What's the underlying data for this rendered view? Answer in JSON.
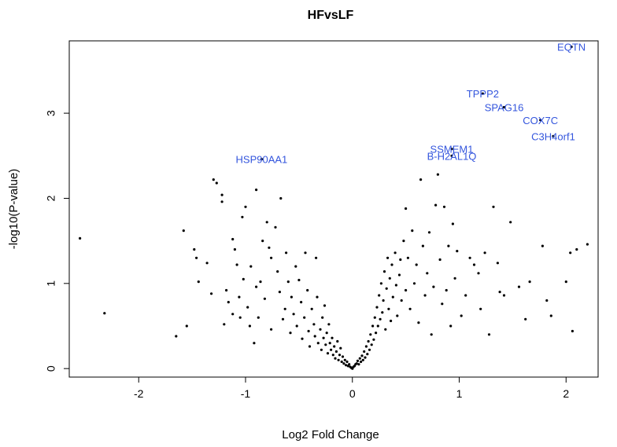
{
  "chart_data": {
    "type": "scatter",
    "title": "HFvsLF",
    "xlabel": "Log2 Fold Change",
    "ylabel": "-log10(P-value)",
    "xlim": [
      -2.65,
      2.3
    ],
    "ylim": [
      -0.1,
      3.85
    ],
    "xticks": [
      -2,
      -1,
      0,
      1,
      2
    ],
    "yticks": [
      0,
      1,
      2,
      3
    ],
    "grid": false,
    "point_color": "#000000",
    "label_color": "#3355dd",
    "labeled_points": [
      {
        "label": "EQTN",
        "x": 2.05,
        "y": 3.78
      },
      {
        "label": "TPPP2",
        "x": 1.22,
        "y": 3.23
      },
      {
        "label": "SPAG16",
        "x": 1.42,
        "y": 3.07
      },
      {
        "label": "COX7C",
        "x": 1.76,
        "y": 2.92
      },
      {
        "label": "C3H4orf1",
        "x": 1.88,
        "y": 2.73
      },
      {
        "label": "HSP90AA1",
        "x": -0.85,
        "y": 2.46
      },
      {
        "label": "SSMEM1",
        "x": 0.93,
        "y": 2.58
      },
      {
        "label": "B-H2AL1Q",
        "x": 0.93,
        "y": 2.5
      }
    ],
    "points": [
      [
        -2.55,
        1.53
      ],
      [
        -2.32,
        0.65
      ],
      [
        -1.65,
        0.38
      ],
      [
        -1.55,
        0.5
      ],
      [
        -1.58,
        1.62
      ],
      [
        -1.48,
        1.4
      ],
      [
        -1.46,
        1.3
      ],
      [
        -1.44,
        1.02
      ],
      [
        -1.36,
        1.24
      ],
      [
        -1.32,
        0.88
      ],
      [
        -1.3,
        2.22
      ],
      [
        -1.27,
        2.18
      ],
      [
        -1.22,
        2.04
      ],
      [
        -1.22,
        1.96
      ],
      [
        -1.2,
        0.52
      ],
      [
        -1.18,
        0.92
      ],
      [
        -1.16,
        0.78
      ],
      [
        -1.12,
        0.64
      ],
      [
        -1.12,
        1.52
      ],
      [
        -1.1,
        1.4
      ],
      [
        -1.08,
        1.22
      ],
      [
        -1.06,
        0.84
      ],
      [
        -1.05,
        0.6
      ],
      [
        -1.03,
        1.78
      ],
      [
        -1.02,
        1.05
      ],
      [
        -1.0,
        1.9
      ],
      [
        -0.98,
        0.72
      ],
      [
        -0.96,
        0.5
      ],
      [
        -0.95,
        1.2
      ],
      [
        -0.92,
        0.3
      ],
      [
        -0.9,
        2.1
      ],
      [
        -0.9,
        0.96
      ],
      [
        -0.88,
        0.6
      ],
      [
        -0.86,
        1.02
      ],
      [
        -0.84,
        1.5
      ],
      [
        -0.82,
        0.82
      ],
      [
        -0.8,
        1.72
      ],
      [
        -0.78,
        1.42
      ],
      [
        -0.76,
        1.3
      ],
      [
        -0.76,
        0.46
      ],
      [
        -0.72,
        1.66
      ],
      [
        -0.7,
        1.14
      ],
      [
        -0.68,
        0.9
      ],
      [
        -0.67,
        2.0
      ],
      [
        -0.65,
        0.58
      ],
      [
        -0.63,
        0.7
      ],
      [
        -0.62,
        1.36
      ],
      [
        -0.6,
        1.02
      ],
      [
        -0.58,
        0.42
      ],
      [
        -0.57,
        0.84
      ],
      [
        -0.55,
        0.64
      ],
      [
        -0.53,
        1.2
      ],
      [
        -0.52,
        0.5
      ],
      [
        -0.5,
        1.04
      ],
      [
        -0.48,
        0.78
      ],
      [
        -0.47,
        0.35
      ],
      [
        -0.45,
        0.6
      ],
      [
        -0.44,
        1.36
      ],
      [
        -0.42,
        0.92
      ],
      [
        -0.41,
        0.44
      ],
      [
        -0.4,
        0.26
      ],
      [
        -0.38,
        0.7
      ],
      [
        -0.36,
        0.52
      ],
      [
        -0.35,
        0.38
      ],
      [
        -0.34,
        1.3
      ],
      [
        -0.33,
        0.84
      ],
      [
        -0.32,
        0.3
      ],
      [
        -0.3,
        0.46
      ],
      [
        -0.29,
        0.22
      ],
      [
        -0.28,
        0.6
      ],
      [
        -0.27,
        0.36
      ],
      [
        -0.26,
        0.74
      ],
      [
        -0.25,
        0.28
      ],
      [
        -0.24,
        0.42
      ],
      [
        -0.23,
        0.18
      ],
      [
        -0.22,
        0.52
      ],
      [
        -0.21,
        0.3
      ],
      [
        -0.2,
        0.22
      ],
      [
        -0.19,
        0.36
      ],
      [
        -0.18,
        0.16
      ],
      [
        -0.17,
        0.26
      ],
      [
        -0.16,
        0.12
      ],
      [
        -0.15,
        0.2
      ],
      [
        -0.14,
        0.32
      ],
      [
        -0.13,
        0.1
      ],
      [
        -0.12,
        0.16
      ],
      [
        -0.11,
        0.24
      ],
      [
        -0.1,
        0.08
      ],
      [
        -0.09,
        0.14
      ],
      [
        -0.08,
        0.06
      ],
      [
        -0.07,
        0.1
      ],
      [
        -0.06,
        0.04
      ],
      [
        -0.05,
        0.08
      ],
      [
        -0.04,
        0.03
      ],
      [
        -0.03,
        0.05
      ],
      [
        -0.02,
        0.02
      ],
      [
        -0.01,
        0.01
      ],
      [
        0.0,
        0.0
      ],
      [
        0.01,
        0.02
      ],
      [
        0.02,
        0.03
      ],
      [
        0.03,
        0.05
      ],
      [
        0.04,
        0.06
      ],
      [
        0.05,
        0.09
      ],
      [
        0.06,
        0.05
      ],
      [
        0.07,
        0.12
      ],
      [
        0.08,
        0.08
      ],
      [
        0.09,
        0.15
      ],
      [
        0.1,
        0.1
      ],
      [
        0.11,
        0.2
      ],
      [
        0.12,
        0.13
      ],
      [
        0.13,
        0.26
      ],
      [
        0.14,
        0.17
      ],
      [
        0.15,
        0.32
      ],
      [
        0.16,
        0.22
      ],
      [
        0.17,
        0.4
      ],
      [
        0.18,
        0.28
      ],
      [
        0.19,
        0.5
      ],
      [
        0.2,
        0.34
      ],
      [
        0.21,
        0.6
      ],
      [
        0.22,
        0.42
      ],
      [
        0.23,
        0.72
      ],
      [
        0.24,
        0.5
      ],
      [
        0.25,
        0.86
      ],
      [
        0.26,
        0.58
      ],
      [
        0.27,
        1.0
      ],
      [
        0.28,
        0.66
      ],
      [
        0.29,
        0.8
      ],
      [
        0.3,
        1.14
      ],
      [
        0.31,
        0.46
      ],
      [
        0.32,
        0.94
      ],
      [
        0.33,
        1.3
      ],
      [
        0.34,
        0.7
      ],
      [
        0.35,
        1.06
      ],
      [
        0.36,
        0.56
      ],
      [
        0.37,
        1.22
      ],
      [
        0.38,
        0.84
      ],
      [
        0.4,
        1.36
      ],
      [
        0.41,
        0.98
      ],
      [
        0.42,
        0.62
      ],
      [
        0.44,
        1.1
      ],
      [
        0.45,
        1.28
      ],
      [
        0.46,
        0.8
      ],
      [
        0.48,
        1.5
      ],
      [
        0.5,
        0.92
      ],
      [
        0.5,
        1.88
      ],
      [
        0.52,
        1.3
      ],
      [
        0.54,
        0.7
      ],
      [
        0.56,
        1.62
      ],
      [
        0.58,
        1.0
      ],
      [
        0.6,
        1.22
      ],
      [
        0.62,
        0.54
      ],
      [
        0.64,
        2.22
      ],
      [
        0.66,
        1.44
      ],
      [
        0.68,
        0.86
      ],
      [
        0.7,
        1.12
      ],
      [
        0.72,
        1.6
      ],
      [
        0.74,
        0.4
      ],
      [
        0.76,
        0.96
      ],
      [
        0.78,
        1.92
      ],
      [
        0.8,
        2.28
      ],
      [
        0.82,
        1.28
      ],
      [
        0.84,
        0.76
      ],
      [
        0.86,
        1.9
      ],
      [
        0.88,
        0.92
      ],
      [
        0.9,
        1.44
      ],
      [
        0.92,
        0.5
      ],
      [
        0.94,
        1.7
      ],
      [
        0.96,
        1.06
      ],
      [
        0.98,
        1.38
      ],
      [
        1.02,
        0.62
      ],
      [
        1.06,
        0.86
      ],
      [
        1.1,
        1.3
      ],
      [
        1.14,
        1.22
      ],
      [
        1.18,
        1.12
      ],
      [
        1.2,
        0.7
      ],
      [
        1.24,
        1.36
      ],
      [
        1.28,
        0.4
      ],
      [
        1.32,
        1.9
      ],
      [
        1.36,
        1.24
      ],
      [
        1.38,
        0.9
      ],
      [
        1.42,
        0.86
      ],
      [
        1.48,
        1.72
      ],
      [
        1.56,
        0.96
      ],
      [
        1.62,
        0.58
      ],
      [
        1.66,
        1.02
      ],
      [
        1.78,
        1.44
      ],
      [
        1.82,
        0.8
      ],
      [
        1.86,
        0.62
      ],
      [
        2.0,
        1.02
      ],
      [
        2.04,
        1.36
      ],
      [
        2.06,
        0.44
      ],
      [
        2.1,
        1.4
      ],
      [
        2.2,
        1.46
      ]
    ]
  }
}
